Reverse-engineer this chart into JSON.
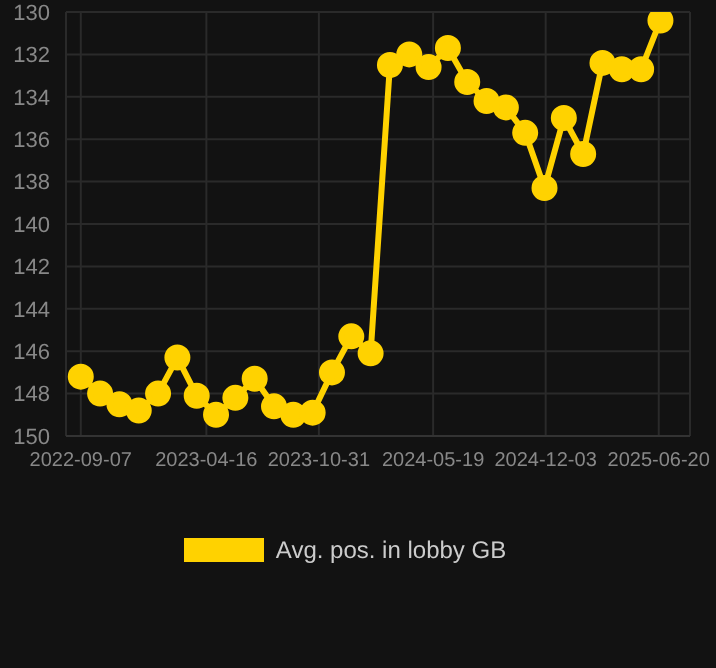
{
  "chart_data": {
    "type": "line",
    "x": [
      "2022-09-07",
      "2022-10-11",
      "2022-11-14",
      "2022-12-18",
      "2023-01-21",
      "2023-02-24",
      "2023-03-30",
      "2023-05-03",
      "2023-06-06",
      "2023-07-10",
      "2023-08-13",
      "2023-09-16",
      "2023-10-20",
      "2023-11-23",
      "2023-12-27",
      "2024-01-30",
      "2024-03-04",
      "2024-04-07",
      "2024-05-11",
      "2024-06-14",
      "2024-07-18",
      "2024-08-21",
      "2024-09-24",
      "2024-10-28",
      "2024-12-01",
      "2025-01-04",
      "2025-02-07",
      "2025-03-13",
      "2025-04-16",
      "2025-05-20",
      "2025-06-23"
    ],
    "series": [
      {
        "name": "Avg. pos. in lobby GB",
        "color": "#ffd200",
        "values": [
          147.2,
          148.0,
          148.5,
          148.8,
          148.0,
          146.3,
          148.1,
          149.0,
          148.2,
          147.3,
          148.6,
          149.0,
          148.9,
          147.0,
          145.3,
          146.1,
          132.5,
          132.0,
          132.6,
          131.7,
          133.3,
          134.2,
          134.5,
          135.7,
          138.3,
          135.0,
          136.7,
          132.4,
          132.7,
          132.7,
          130.4
        ]
      }
    ],
    "xlim": [
      "2022-08-12",
      "2025-08-14"
    ],
    "xticks": [
      "2022-09-07",
      "2023-04-16",
      "2023-10-31",
      "2024-05-19",
      "2024-12-03",
      "2025-06-20"
    ],
    "ylim": [
      150,
      130
    ],
    "yticks": [
      130,
      132,
      134,
      136,
      138,
      140,
      142,
      144,
      146,
      148,
      150
    ],
    "grid": true,
    "legend": "bottom",
    "marker": "circle",
    "line_style": "solid"
  }
}
